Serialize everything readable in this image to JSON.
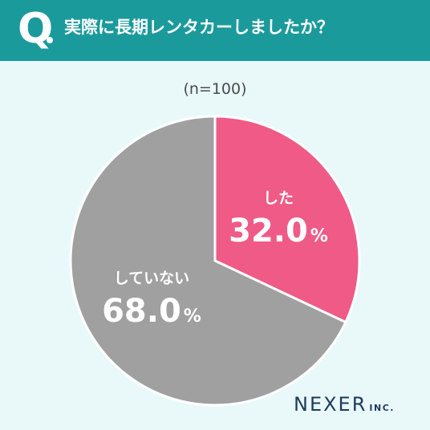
{
  "header": {
    "q_letter": "Q",
    "question": "実際に長期レンタカーしましたか？",
    "color": "#1b9a9c"
  },
  "sample_size": "(n=100)",
  "chart_data": {
    "type": "pie",
    "title": "実際に長期レンタカーしましたか？",
    "n": "(n=100)",
    "slices": [
      {
        "label": "した",
        "value": 32.0,
        "value_text": "32.0",
        "unit": "%",
        "color": "#ef5a86"
      },
      {
        "label": "していない",
        "value": 68.0,
        "value_text": "68.0",
        "unit": "%",
        "color": "#a0a0a0"
      }
    ]
  },
  "logo": {
    "main": "NEXER",
    "sub": "INC."
  }
}
